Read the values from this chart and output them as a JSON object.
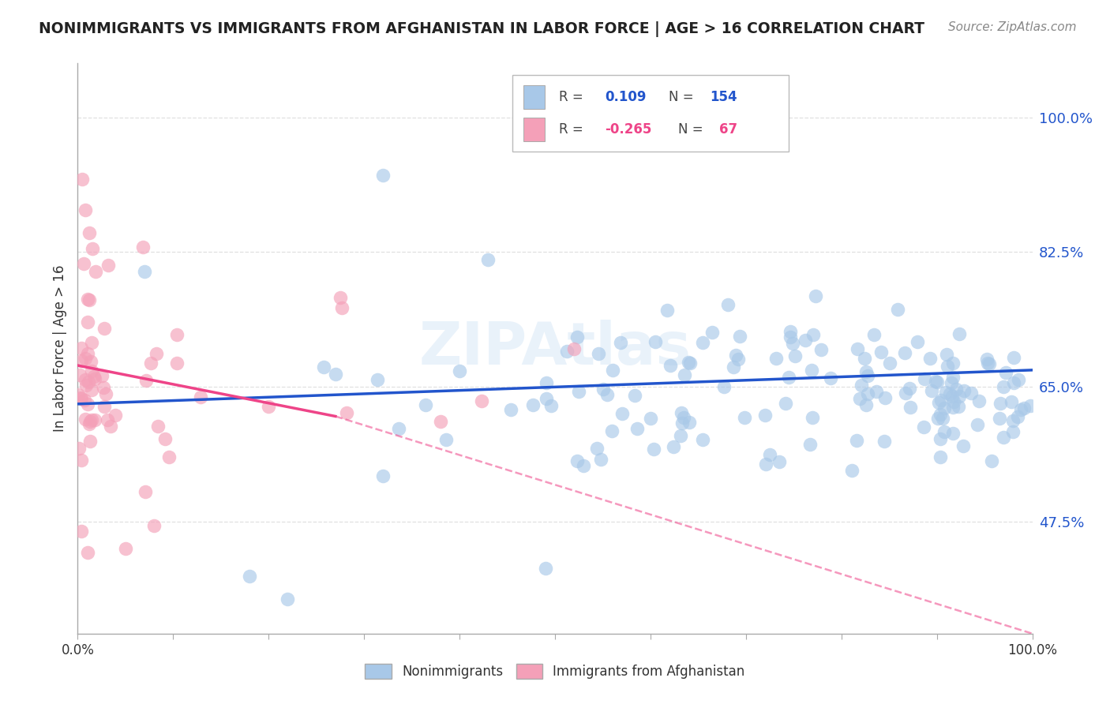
{
  "title": "NONIMMIGRANTS VS IMMIGRANTS FROM AFGHANISTAN IN LABOR FORCE | AGE > 16 CORRELATION CHART",
  "source": "Source: ZipAtlas.com",
  "ylabel": "In Labor Force | Age > 16",
  "ytick_labels": [
    "47.5%",
    "65.0%",
    "82.5%",
    "100.0%"
  ],
  "ytick_values": [
    0.475,
    0.65,
    0.825,
    1.0
  ],
  "xrange": [
    0.0,
    1.0
  ],
  "yrange": [
    0.33,
    1.07
  ],
  "blue_R": 0.109,
  "blue_N": 154,
  "pink_R": -0.265,
  "pink_N": 67,
  "blue_color": "#A8C8E8",
  "pink_color": "#F4A0B8",
  "blue_line_color": "#2255CC",
  "pink_line_color": "#EE4488",
  "watermark": "ZIPAtlas",
  "legend_label_blue": "Nonimmigrants",
  "legend_label_pink": "Immigrants from Afghanistan",
  "blue_line_x": [
    0.0,
    1.0
  ],
  "blue_line_y": [
    0.628,
    0.672
  ],
  "pink_line_x": [
    0.0,
    0.27
  ],
  "pink_line_y": [
    0.678,
    0.612
  ],
  "pink_dashed_line_x": [
    0.27,
    1.0
  ],
  "pink_dashed_line_y": [
    0.612,
    0.33
  ],
  "grid_color": "#DDDDDD",
  "background_color": "#FFFFFF",
  "text_color": "#333333",
  "source_color": "#888888"
}
